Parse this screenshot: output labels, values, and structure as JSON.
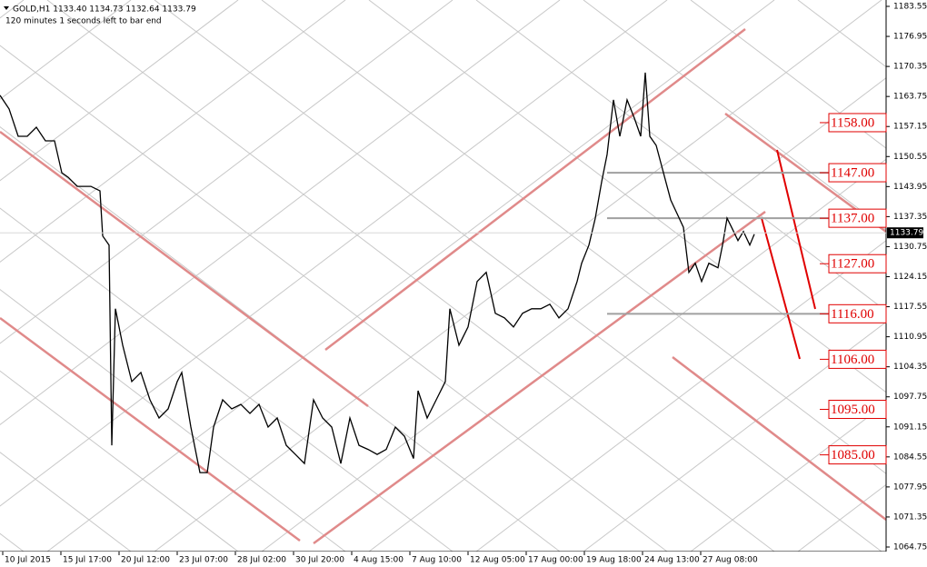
{
  "chart_data": {
    "type": "line",
    "title": "GOLD,H1  1133.40 1134.73 1132.64 1133.79",
    "subtitle": "120 minutes 1 seconds left to bar end",
    "last_price": 1133.79,
    "xlim": [
      -3,
      972
    ],
    "xticks": [
      {
        "value": 0,
        "label": "10 Jul 2015"
      },
      {
        "value": 64,
        "label": "15 Jul 17:00"
      },
      {
        "value": 128,
        "label": "20 Jul 12:00"
      },
      {
        "value": 192,
        "label": "23 Jul 07:00"
      },
      {
        "value": 256,
        "label": "28 Jul 02:00"
      },
      {
        "value": 320,
        "label": "30 Jul 20:00"
      },
      {
        "value": 384,
        "label": "4 Aug 15:00"
      },
      {
        "value": 448,
        "label": "7 Aug 10:00"
      },
      {
        "value": 512,
        "label": "12 Aug 05:00"
      },
      {
        "value": 576,
        "label": "17 Aug 00:00"
      },
      {
        "value": 640,
        "label": "19 Aug 18:00"
      },
      {
        "value": 704,
        "label": "24 Aug 13:00"
      },
      {
        "value": 768,
        "label": "27 Aug 08:00"
      }
    ],
    "ylim": [
      1063.75,
      1184.95
    ],
    "yticks": [
      1183.55,
      1176.95,
      1170.35,
      1163.75,
      1157.15,
      1150.55,
      1143.95,
      1137.35,
      1130.75,
      1124.15,
      1117.55,
      1110.95,
      1104.35,
      1097.75,
      1091.15,
      1084.55,
      1077.95,
      1071.35,
      1064.75
    ],
    "levels": [
      {
        "value": 1158,
        "label": "1158.00"
      },
      {
        "value": 1147,
        "label": "1147.00"
      },
      {
        "value": 1137,
        "label": "1137.00"
      },
      {
        "value": 1127,
        "label": "1127.00"
      },
      {
        "value": 1116,
        "label": "1116.00"
      },
      {
        "value": 1106,
        "label": "1106.00"
      },
      {
        "value": 1095,
        "label": "1095.00"
      },
      {
        "value": 1085,
        "label": "1085.00"
      }
    ],
    "hlines": [
      1147,
      1137,
      1116
    ],
    "series": [
      {
        "name": "GOLD",
        "color": "#000000",
        "x": [
          -3,
          7,
          17,
          27,
          37,
          47,
          57,
          65,
          72,
          82,
          97,
          107,
          110,
          117,
          120,
          124,
          132,
          142,
          152,
          162,
          172,
          182,
          192,
          197,
          207,
          217,
          225,
          232,
          242,
          252,
          262,
          272,
          282,
          292,
          302,
          312,
          322,
          332,
          342,
          352,
          362,
          372,
          382,
          392,
          402,
          412,
          422,
          432,
          442,
          452,
          457,
          467,
          477,
          487,
          492,
          502,
          512,
          522,
          532,
          542,
          552,
          562,
          572,
          582,
          592,
          602,
          612,
          622,
          632,
          637,
          645,
          652,
          659,
          665,
          672,
          679,
          687,
          695,
          702,
          707,
          712,
          719,
          727,
          735,
          742,
          749,
          755,
          762,
          769,
          777,
          787,
          792,
          797,
          802,
          809,
          815,
          822,
          827
        ],
        "values": [
          1164.0,
          1161.0,
          1155.0,
          1155.0,
          1157.0,
          1154.0,
          1154.0,
          1147.0,
          1146.0,
          1144.0,
          1144.0,
          1143.0,
          1133.1,
          1131.1,
          1087.1,
          1117.1,
          1109.1,
          1101.1,
          1103.1,
          1097.1,
          1093.1,
          1095.1,
          1101.1,
          1103.1,
          1091.1,
          1081.1,
          1081.1,
          1091.1,
          1097.1,
          1095.1,
          1096.1,
          1094.1,
          1096.1,
          1091.1,
          1093.1,
          1087.1,
          1085.1,
          1083.1,
          1097.1,
          1093.1,
          1091.1,
          1083.1,
          1093.1,
          1087.1,
          1086.2,
          1085.1,
          1086.2,
          1091.1,
          1089.1,
          1084.2,
          1099.1,
          1093.1,
          1097.1,
          1101.1,
          1117.1,
          1109.1,
          1113.1,
          1123.1,
          1125.1,
          1116.1,
          1115.1,
          1113.1,
          1116.1,
          1117.1,
          1117.1,
          1118.1,
          1115.1,
          1117.1,
          1123.1,
          1127.1,
          1131.1,
          1137.0,
          1145.0,
          1151.0,
          1163.0,
          1155.0,
          1163.0,
          1159.0,
          1155.0,
          1169.0,
          1155.0,
          1153.0,
          1147.0,
          1141.0,
          1138.0,
          1135.0,
          1125.1,
          1127.1,
          1123.1,
          1127.1,
          1126.1,
          1131.1,
          1137.0,
          1135.0,
          1132.1,
          1134.1,
          1131.1,
          1133.5
        ]
      }
    ]
  }
}
